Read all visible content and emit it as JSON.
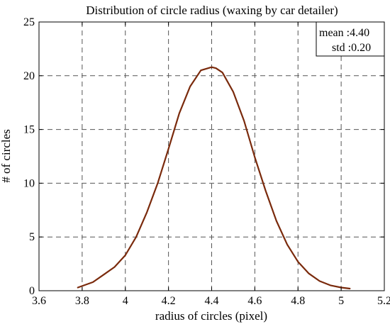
{
  "chart_data": {
    "type": "line",
    "title": "Distribution of circle radius (waxing by car detailer)",
    "xlabel": "radius of circles (pixel)",
    "ylabel": "# of circles",
    "xlim": [
      3.6,
      5.2
    ],
    "ylim": [
      0,
      25
    ],
    "x_ticks": [
      "3.6",
      "3.8",
      "4",
      "4.2",
      "4.4",
      "4.6",
      "4.8",
      "5",
      "5.2"
    ],
    "y_ticks": [
      "0",
      "5",
      "10",
      "15",
      "20",
      "25"
    ],
    "grid": true,
    "grid_style": "dashed",
    "line_color": "#7a2a0c",
    "stats_box": {
      "placement": "top-right",
      "mean_label": "mean :4.40",
      "std_label": "std :0.20"
    },
    "series": [
      {
        "x": [
          3.78,
          3.85,
          3.9,
          3.95,
          4.0,
          4.05,
          4.1,
          4.15,
          4.2,
          4.25,
          4.3,
          4.35,
          4.4,
          4.42,
          4.45,
          4.5,
          4.55,
          4.6,
          4.65,
          4.7,
          4.75,
          4.8,
          4.85,
          4.9,
          4.95,
          5.0,
          5.04
        ],
        "y": [
          0.3,
          0.8,
          1.5,
          2.2,
          3.3,
          5.0,
          7.3,
          10.0,
          13.2,
          16.5,
          19.0,
          20.5,
          20.8,
          20.7,
          20.3,
          18.5,
          15.8,
          12.4,
          9.3,
          6.5,
          4.3,
          2.7,
          1.6,
          0.9,
          0.5,
          0.3,
          0.2
        ]
      }
    ]
  }
}
